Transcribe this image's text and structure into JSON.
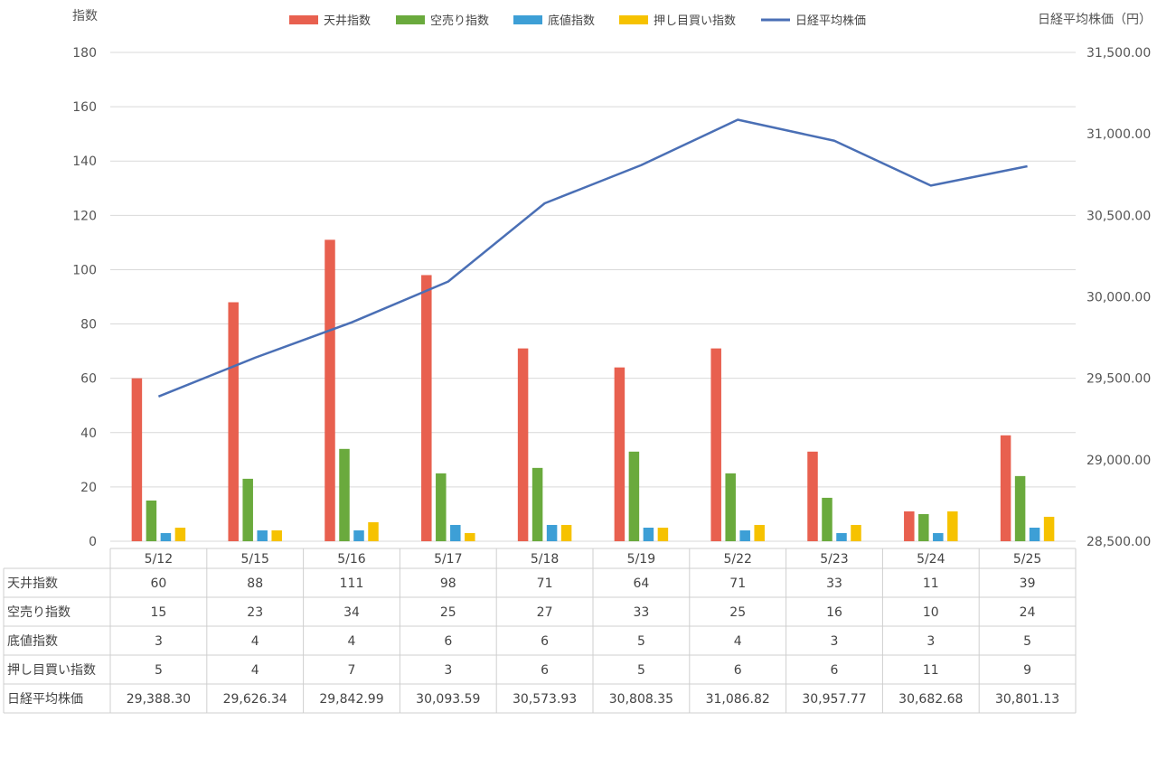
{
  "chart_data": {
    "type": "bar",
    "ylabel_left": "指数",
    "ylabel_right": "日経平均株価（円）",
    "ylim_left": [
      0,
      180
    ],
    "yticks_left": [
      "0",
      "20",
      "40",
      "60",
      "80",
      "100",
      "120",
      "140",
      "160",
      "180"
    ],
    "ylim_right": [
      28500,
      31500
    ],
    "yticks_right": [
      "28,500.00",
      "29,000.00",
      "29,500.00",
      "30,000.00",
      "30,500.00",
      "31,000.00",
      "31,500.00"
    ],
    "grid": true,
    "legend_position": "top",
    "categories": [
      "5/12",
      "5/15",
      "5/16",
      "5/17",
      "5/18",
      "5/19",
      "5/22",
      "5/23",
      "5/24",
      "5/25"
    ],
    "series": [
      {
        "name": "天井指数",
        "kind": "bar",
        "color": "#e8604f",
        "values": [
          60,
          88,
          111,
          98,
          71,
          64,
          71,
          33,
          11,
          39
        ],
        "table_labels": [
          "60",
          "88",
          "111",
          "98",
          "71",
          "64",
          "71",
          "33",
          "11",
          "39"
        ]
      },
      {
        "name": "空売り指数",
        "kind": "bar",
        "color": "#6aaa3d",
        "values": [
          15,
          23,
          34,
          25,
          27,
          33,
          25,
          16,
          10,
          24
        ],
        "table_labels": [
          "15",
          "23",
          "34",
          "25",
          "27",
          "33",
          "25",
          "16",
          "10",
          "24"
        ]
      },
      {
        "name": "底値指数",
        "kind": "bar",
        "color": "#3d9fd6",
        "values": [
          3,
          4,
          4,
          6,
          6,
          5,
          4,
          3,
          3,
          5
        ],
        "table_labels": [
          "3",
          "4",
          "4",
          "6",
          "6",
          "5",
          "4",
          "3",
          "3",
          "5"
        ]
      },
      {
        "name": "押し目買い指数",
        "kind": "bar",
        "color": "#f6c200",
        "values": [
          5,
          4,
          7,
          3,
          6,
          5,
          6,
          6,
          11,
          9
        ],
        "table_labels": [
          "5",
          "4",
          "7",
          "3",
          "6",
          "5",
          "6",
          "6",
          "11",
          "9"
        ]
      },
      {
        "name": "日経平均株価",
        "kind": "line",
        "axis": "right",
        "color": "#4a6fb5",
        "values": [
          29388.3,
          29626.34,
          29842.99,
          30093.59,
          30573.93,
          30808.35,
          31086.82,
          30957.77,
          30682.68,
          30801.13
        ],
        "table_labels": [
          "29,388.30",
          "29,626.34",
          "29,842.99",
          "30,093.59",
          "30,573.93",
          "30,808.35",
          "31,086.82",
          "30,957.77",
          "30,682.68",
          "30,801.13"
        ]
      }
    ]
  }
}
